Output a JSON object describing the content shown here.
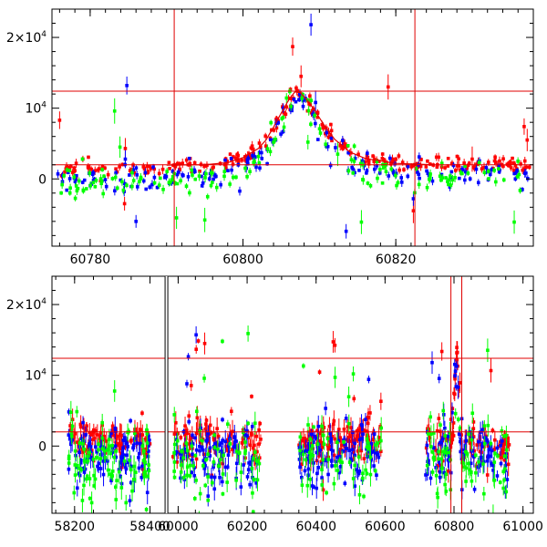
{
  "chart_data": [
    {
      "type": "scatter",
      "title": "",
      "xlabel": "",
      "ylabel": "",
      "xlim": [
        60775,
        60838
      ],
      "ylim": [
        -9500,
        24000
      ],
      "x_ticks": [
        60780,
        60800,
        60820
      ],
      "x_tick_labels": [
        "60780",
        "60800",
        "60820"
      ],
      "y_ticks": [
        0,
        10000,
        20000
      ],
      "y_tick_labels": [
        {
          "base": "0",
          "exp": ""
        },
        {
          "base": "10",
          "exp": "4"
        },
        {
          "base": "2×10",
          "exp": "4"
        }
      ],
      "hlines": [
        2000,
        12400
      ],
      "vlines": [
        60791,
        60822.5
      ],
      "model_curve": {
        "x": [
          60790,
          60795,
          60798,
          60800,
          60802,
          60803,
          60804,
          60805,
          60806,
          60806.8,
          60807.5,
          60808.5,
          60809.5,
          60810.5,
          60812,
          60814,
          60816,
          60820,
          60825
        ],
        "y": [
          1950,
          2000,
          2300,
          3000,
          4300,
          5500,
          7300,
          9300,
          11200,
          12300,
          12200,
          11000,
          9500,
          7800,
          5600,
          3800,
          2900,
          2200,
          2000
        ]
      },
      "series": [
        {
          "name": "red",
          "color": "#ff0000",
          "count": 260,
          "seed": 11,
          "noise": 500,
          "outliers": [
            [
              60776,
              8300
            ],
            [
              60784.5,
              -3500
            ],
            [
              60784.6,
              4300
            ],
            [
              60806.5,
              18700
            ],
            [
              60807.6,
              14500
            ],
            [
              60819,
              13000
            ],
            [
              60836.8,
              7400
            ],
            [
              60837.2,
              5500
            ],
            [
              60830,
              2800
            ],
            [
              60822.3,
              -4500
            ]
          ]
        },
        {
          "name": "blue",
          "color": "#0000ff",
          "count": 190,
          "seed": 23,
          "noise": 900,
          "outliers": [
            [
              60784.8,
              13200
            ],
            [
              60786,
              -6000
            ],
            [
              60808.9,
              21800
            ],
            [
              60813.5,
              -7400
            ],
            [
              60784.6,
              2800
            ],
            [
              60822.3,
              -2800
            ],
            [
              60809.5,
              10800
            ]
          ]
        },
        {
          "name": "green",
          "color": "#00ff00",
          "count": 160,
          "seed": 37,
          "noise": 1100,
          "outliers": [
            [
              60783.2,
              9600
            ],
            [
              60783.9,
              4500
            ],
            [
              60791.3,
              -5500
            ],
            [
              60795,
              -5800
            ],
            [
              60808.5,
              5200
            ],
            [
              60815.5,
              -6100
            ],
            [
              60835.5,
              -6100
            ],
            [
              60812.4,
              3500
            ]
          ]
        }
      ],
      "series_shape": "lightcurve"
    },
    {
      "type": "scatter",
      "title": "",
      "xlabel": "",
      "ylabel": "",
      "xlim": [
        58140,
        61030
      ],
      "ylim": [
        -9500,
        24000
      ],
      "x_ticks": [
        58200,
        58400,
        60000,
        60200,
        60400,
        60600,
        60800,
        61000
      ],
      "x_tick_labels": [
        "58200",
        "58400",
        "60000",
        "60200",
        "60400",
        "60600",
        "60800",
        "61000"
      ],
      "x_axis_break": {
        "left": [
          58140,
          58440
        ],
        "right": [
          59970,
          61030
        ]
      },
      "y_ticks": [
        0,
        10000,
        20000
      ],
      "y_tick_labels": [
        {
          "base": "0",
          "exp": ""
        },
        {
          "base": "10",
          "exp": "4"
        },
        {
          "base": "2×10",
          "exp": "4"
        }
      ],
      "hlines": [
        2000,
        12400
      ],
      "vlines": [
        60791,
        60822.5
      ],
      "seasons": [
        [
          58180,
          58400
        ],
        [
          59985,
          60240
        ],
        [
          60350,
          60590
        ],
        [
          60715,
          60960
        ]
      ],
      "series": [
        {
          "name": "red",
          "color": "#ff0000",
          "count": 420,
          "seed": 41,
          "noise": 1400
        },
        {
          "name": "blue",
          "color": "#0000ff",
          "count": 380,
          "seed": 53,
          "noise": 2300
        },
        {
          "name": "green",
          "color": "#00ff00",
          "count": 300,
          "seed": 67,
          "noise": 3000
        }
      ],
      "flare_center": 60807,
      "flare_peak": 12000
    }
  ]
}
